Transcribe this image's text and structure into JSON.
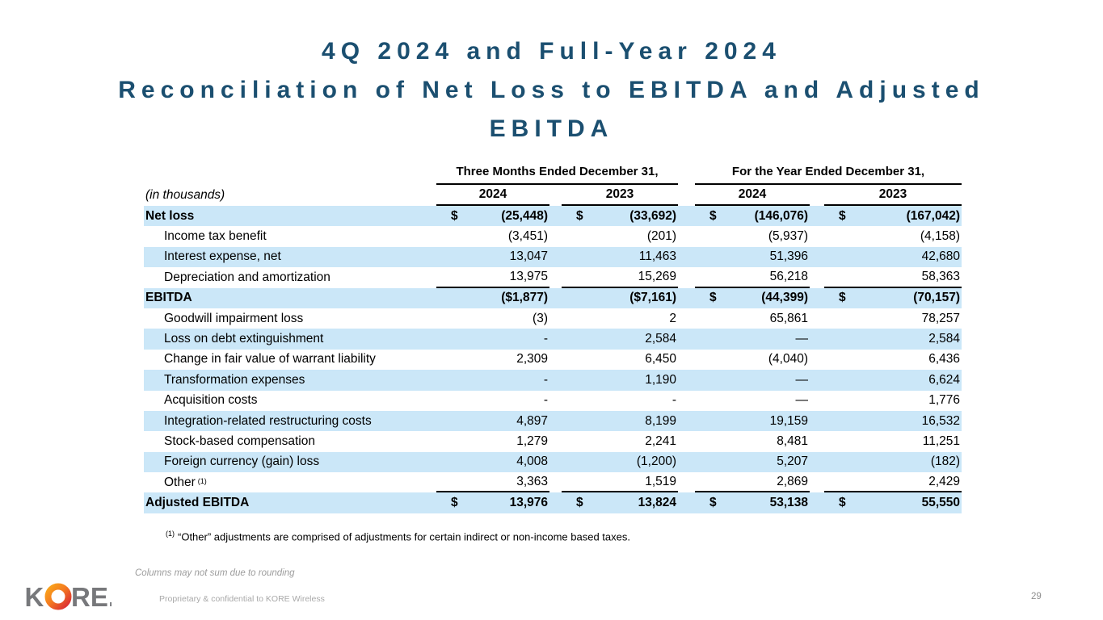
{
  "slide": {
    "title_line1": "4Q 2024 and Full-Year 2024",
    "title_line2": "Reconciliation of Net Loss to EBITDA and Adjusted",
    "title_line3": "EBITDA"
  },
  "table": {
    "unit_label": "(in thousands)",
    "group_headers": [
      "Three Months Ended December 31,",
      "For the Year Ended December 31,"
    ],
    "year_headers": [
      "2024",
      "2023",
      "2024",
      "2023"
    ],
    "rows": [
      {
        "label": "Net loss",
        "bold": true,
        "shade": true,
        "cells": [
          {
            "d": "$",
            "v": "(25,448)"
          },
          {
            "d": "$",
            "v": "(33,692)"
          },
          {
            "d": "$",
            "v": "(146,076)"
          },
          {
            "d": "$",
            "v": "(167,042)"
          }
        ]
      },
      {
        "label": "Income tax benefit",
        "indent": true,
        "cells": [
          {
            "v": "(3,451)"
          },
          {
            "v": "(201)"
          },
          {
            "v": "(5,937)"
          },
          {
            "v": "(4,158)"
          }
        ]
      },
      {
        "label": "Interest expense, net",
        "indent": true,
        "shade": true,
        "cells": [
          {
            "v": "13,047"
          },
          {
            "v": "11,463"
          },
          {
            "v": "51,396"
          },
          {
            "v": "42,680"
          }
        ]
      },
      {
        "label": "Depreciation and amortization",
        "indent": true,
        "rule_below": true,
        "cells": [
          {
            "v": "13,975"
          },
          {
            "v": "15,269"
          },
          {
            "v": "56,218"
          },
          {
            "v": "58,363"
          }
        ]
      },
      {
        "label": "EBITDA",
        "bold": true,
        "shade": true,
        "cells": [
          {
            "v": "($1,877)"
          },
          {
            "v": "($7,161)"
          },
          {
            "d": "$",
            "v": "(44,399)"
          },
          {
            "d": "$",
            "v": "(70,157)"
          }
        ]
      },
      {
        "label": "Goodwill impairment loss",
        "indent": true,
        "cells": [
          {
            "v": "(3)"
          },
          {
            "v": "2"
          },
          {
            "v": "65,861"
          },
          {
            "v": "78,257"
          }
        ]
      },
      {
        "label": "Loss on debt extinguishment",
        "indent": true,
        "shade": true,
        "cells": [
          {
            "v": "-"
          },
          {
            "v": "2,584"
          },
          {
            "v": "—"
          },
          {
            "v": "2,584"
          }
        ]
      },
      {
        "label": "Change in fair value of warrant liability",
        "indent": true,
        "cells": [
          {
            "v": "2,309"
          },
          {
            "v": "6,450"
          },
          {
            "v": "(4,040)"
          },
          {
            "v": "6,436"
          }
        ]
      },
      {
        "label": "Transformation expenses",
        "indent": true,
        "shade": true,
        "cells": [
          {
            "v": "-"
          },
          {
            "v": "1,190"
          },
          {
            "v": "—"
          },
          {
            "v": "6,624"
          }
        ]
      },
      {
        "label": "Acquisition costs",
        "indent": true,
        "cells": [
          {
            "v": "-"
          },
          {
            "v": "-"
          },
          {
            "v": "—"
          },
          {
            "v": "1,776"
          }
        ]
      },
      {
        "label": "Integration-related restructuring costs",
        "indent": true,
        "shade": true,
        "cells": [
          {
            "v": "4,897"
          },
          {
            "v": "8,199"
          },
          {
            "v": "19,159"
          },
          {
            "v": "16,532"
          }
        ]
      },
      {
        "label": "Stock-based compensation",
        "indent": true,
        "cells": [
          {
            "v": "1,279"
          },
          {
            "v": "2,241"
          },
          {
            "v": "8,481"
          },
          {
            "v": "11,251"
          }
        ]
      },
      {
        "label": "Foreign currency (gain) loss",
        "indent": true,
        "shade": true,
        "cells": [
          {
            "v": "4,008"
          },
          {
            "v": "(1,200)"
          },
          {
            "v": "5,207"
          },
          {
            "v": "(182)"
          }
        ]
      },
      {
        "label": "Other",
        "label_sup": "(1)",
        "indent": true,
        "rule_below": true,
        "cells": [
          {
            "v": "3,363"
          },
          {
            "v": "1,519"
          },
          {
            "v": "2,869"
          },
          {
            "v": "2,429"
          }
        ]
      },
      {
        "label": "Adjusted EBITDA",
        "bold": true,
        "shade": true,
        "cells": [
          {
            "d": "$",
            "v": "13,976"
          },
          {
            "d": "$",
            "v": "13,824"
          },
          {
            "d": "$",
            "v": "53,138"
          },
          {
            "d": "$",
            "v": "55,550"
          }
        ]
      }
    ]
  },
  "footnote": {
    "sup": "(1)",
    "text": "“Other” adjustments are comprised of adjustments for certain indirect or non-income based taxes."
  },
  "footer": {
    "rounding_note": "Columns may not sum due to rounding",
    "confidential": "Proprietary & confidential to KORE Wireless",
    "page_number": "29",
    "logo_k": "K",
    "logo_re": "RE."
  },
  "colors": {
    "title_accent": "#1B4F70",
    "row_shade": "#CBE7F8",
    "rule_black": "#000000",
    "logo_gray": "#77787B",
    "logo_orange": "#F9A51A",
    "logo_red": "#DA2A33"
  }
}
